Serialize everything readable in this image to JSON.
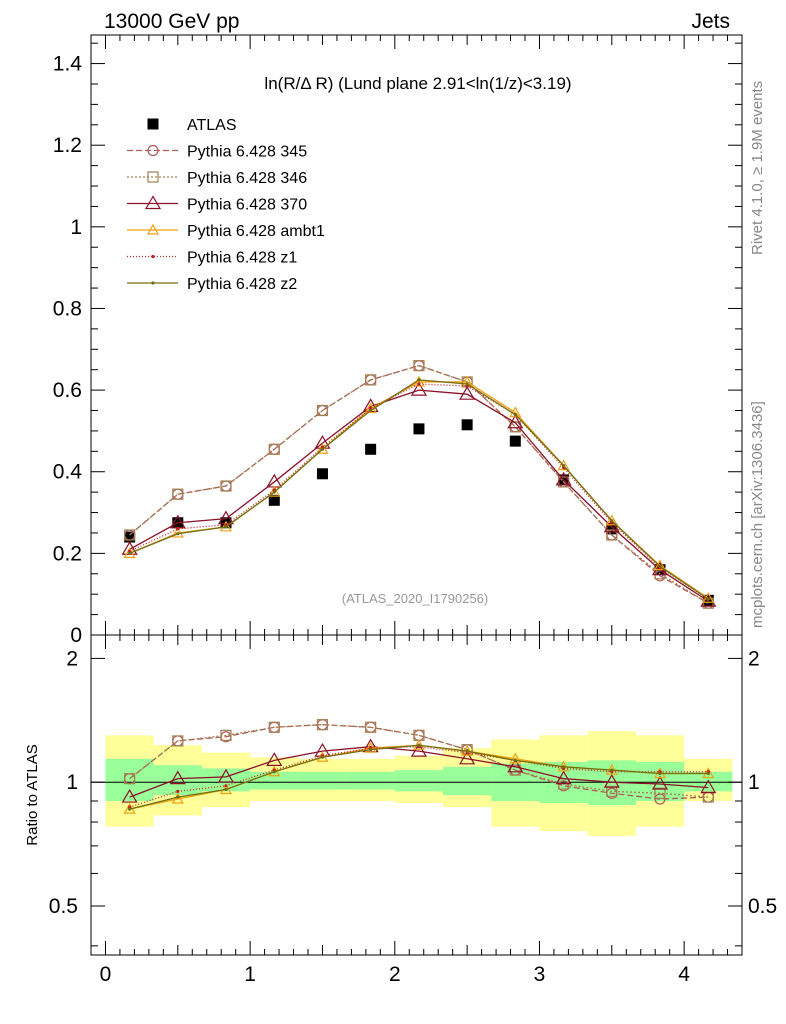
{
  "header": {
    "left": "13000 GeV pp",
    "right": "Jets"
  },
  "side_labels": {
    "rivet": "Rivet 4.1.0, ≥ 1.9M events",
    "mcplots": "mcplots.cern.ch [arXiv:1306.3436]"
  },
  "colors": {
    "data": "#000000",
    "p345": "#b05a5a",
    "p346": "#a08050",
    "p370": "#8b1028",
    "ambt1": "#f0a010",
    "z1": "#c02020",
    "z2": "#707010",
    "band_outer": "#ffff99",
    "band_inner": "#99ff99"
  },
  "chart_data": [
    {
      "type": "scatter",
      "title": "ln(R/Δ R) (Lund plane 2.91<ln(1/z)<3.19)",
      "watermark": "(ATLAS_2020_I1790256)",
      "xlabel": "",
      "ylabel": "",
      "xlim": [
        -0.1,
        4.4
      ],
      "ylim": [
        0,
        1.47
      ],
      "yticks": [
        0,
        0.2,
        0.4,
        0.6,
        0.8,
        1,
        1.2,
        1.4
      ],
      "ytick_labels": [
        "0",
        "0.2",
        "0.4",
        "0.6",
        "0.8",
        "1",
        "1.2",
        "1.4"
      ],
      "x": [
        0.167,
        0.5,
        0.833,
        1.167,
        1.5,
        1.833,
        2.167,
        2.5,
        2.833,
        3.167,
        3.5,
        3.833,
        4.167
      ],
      "series": [
        {
          "name": "ATLAS",
          "key": "data",
          "marker": "square",
          "dash": "none",
          "values": [
            0.24,
            0.275,
            0.275,
            0.33,
            0.395,
            0.455,
            0.505,
            0.515,
            0.475,
            0.38,
            0.26,
            0.16,
            0.085
          ]
        },
        {
          "name": "Pythia 6.428 345",
          "key": "p345",
          "marker": "circle",
          "dash": "6,3",
          "values": [
            0.245,
            0.345,
            0.365,
            0.455,
            0.55,
            0.625,
            0.66,
            0.62,
            0.51,
            0.375,
            0.245,
            0.145,
            0.078
          ]
        },
        {
          "name": "Pythia 6.428 346",
          "key": "p346",
          "marker": "square-open",
          "dash": "2,2",
          "values": [
            0.245,
            0.345,
            0.365,
            0.455,
            0.55,
            0.625,
            0.66,
            0.62,
            0.51,
            0.375,
            0.245,
            0.15,
            0.078
          ]
        },
        {
          "name": "Pythia 6.428 370",
          "key": "p370",
          "marker": "triangle",
          "dash": "none",
          "values": [
            0.21,
            0.275,
            0.285,
            0.375,
            0.47,
            0.56,
            0.6,
            0.59,
            0.52,
            0.38,
            0.265,
            0.16,
            0.083
          ]
        },
        {
          "name": "Pythia 6.428 ambt1",
          "key": "ambt1",
          "marker": "triangle-small",
          "dash": "none",
          "values": [
            0.2,
            0.25,
            0.265,
            0.35,
            0.455,
            0.555,
            0.62,
            0.62,
            0.545,
            0.415,
            0.28,
            0.17,
            0.09
          ]
        },
        {
          "name": "Pythia 6.428 z1",
          "key": "z1",
          "marker": "dot",
          "dash": "1,2",
          "values": [
            0.205,
            0.26,
            0.27,
            0.355,
            0.46,
            0.555,
            0.615,
            0.61,
            0.54,
            0.41,
            0.275,
            0.165,
            0.088
          ]
        },
        {
          "name": "Pythia 6.428 z2",
          "key": "z2",
          "marker": "dot",
          "dash": "none",
          "values": [
            0.2,
            0.248,
            0.265,
            0.35,
            0.455,
            0.55,
            0.625,
            0.615,
            0.54,
            0.415,
            0.28,
            0.168,
            0.088
          ]
        }
      ]
    },
    {
      "type": "line",
      "ylabel": "Ratio to ATLAS",
      "yscale": "log",
      "xlim": [
        -0.1,
        4.4
      ],
      "ylim": [
        0.38,
        2.28
      ],
      "yticks": [
        0.5,
        1,
        2
      ],
      "ytick_labels": [
        "0.5",
        "1",
        "2"
      ],
      "xticks": [
        0,
        1,
        2,
        3,
        4
      ],
      "xtick_labels": [
        "0",
        "1",
        "2",
        "3",
        "4"
      ],
      "band_x_edges": [
        0,
        0.333,
        0.667,
        1.0,
        1.333,
        1.667,
        2.0,
        2.333,
        2.667,
        3.0,
        3.333,
        3.667,
        4.0,
        4.333
      ],
      "band_outer": {
        "low": [
          0.78,
          0.83,
          0.87,
          0.9,
          0.9,
          0.9,
          0.89,
          0.87,
          0.78,
          0.76,
          0.74,
          0.78,
          0.9
        ],
        "high": [
          1.3,
          1.23,
          1.18,
          1.15,
          1.14,
          1.14,
          1.16,
          1.21,
          1.27,
          1.3,
          1.33,
          1.3,
          1.14
        ]
      },
      "band_inner": {
        "low": [
          0.9,
          0.93,
          0.95,
          0.96,
          0.96,
          0.96,
          0.95,
          0.93,
          0.9,
          0.89,
          0.88,
          0.9,
          0.95
        ],
        "high": [
          1.14,
          1.1,
          1.08,
          1.06,
          1.06,
          1.06,
          1.07,
          1.09,
          1.11,
          1.12,
          1.13,
          1.12,
          1.06
        ]
      },
      "x": [
        0.167,
        0.5,
        0.833,
        1.167,
        1.5,
        1.833,
        2.167,
        2.5,
        2.833,
        3.167,
        3.5,
        3.833,
        4.167
      ],
      "series": [
        {
          "name": "Pythia 6.428 345",
          "key": "p345",
          "marker": "circle",
          "dash": "6,3",
          "values": [
            1.02,
            1.26,
            1.29,
            1.36,
            1.38,
            1.36,
            1.3,
            1.2,
            1.07,
            0.98,
            0.94,
            0.91,
            0.92
          ]
        },
        {
          "name": "Pythia 6.428 346",
          "key": "p346",
          "marker": "square-open",
          "dash": "2,2",
          "values": [
            1.02,
            1.26,
            1.3,
            1.36,
            1.38,
            1.36,
            1.3,
            1.2,
            1.07,
            0.99,
            0.95,
            0.94,
            0.92
          ]
        },
        {
          "name": "Pythia 6.428 370",
          "key": "p370",
          "marker": "triangle",
          "dash": "none",
          "values": [
            0.92,
            1.02,
            1.03,
            1.13,
            1.19,
            1.22,
            1.19,
            1.14,
            1.09,
            1.02,
            1.0,
            0.99,
            0.97
          ]
        },
        {
          "name": "Pythia 6.428 ambt1",
          "key": "ambt1",
          "marker": "triangle-small",
          "dash": "none",
          "values": [
            0.86,
            0.91,
            0.96,
            1.06,
            1.15,
            1.21,
            1.23,
            1.19,
            1.14,
            1.09,
            1.07,
            1.05,
            1.05
          ]
        },
        {
          "name": "Pythia 6.428 z1",
          "key": "z1",
          "marker": "dot",
          "dash": "1,2",
          "values": [
            0.87,
            0.95,
            0.98,
            1.07,
            1.16,
            1.21,
            1.22,
            1.18,
            1.13,
            1.08,
            1.06,
            1.06,
            1.06
          ]
        },
        {
          "name": "Pythia 6.428 z2",
          "key": "z2",
          "marker": "dot",
          "dash": "none",
          "values": [
            0.86,
            0.92,
            0.96,
            1.06,
            1.15,
            1.2,
            1.23,
            1.19,
            1.13,
            1.09,
            1.07,
            1.05,
            1.05
          ]
        }
      ]
    }
  ]
}
